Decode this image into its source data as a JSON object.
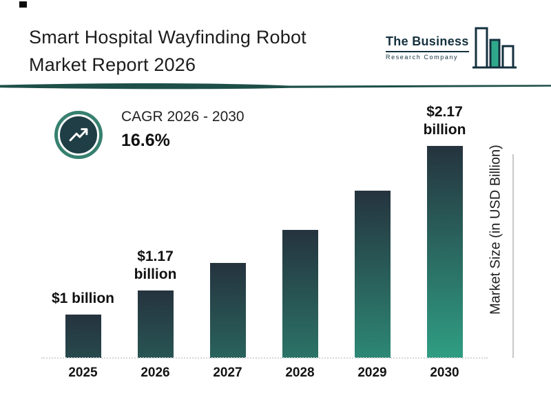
{
  "header": {
    "title_line1": "Smart Hospital Wayfinding Robot",
    "title_line2": "Market Report 2026",
    "logo": {
      "name": "The Business",
      "subtitle": "Research Company"
    }
  },
  "cagr": {
    "label": "CAGR 2026 - 2030",
    "value": "16.6%"
  },
  "chart_data": {
    "type": "bar",
    "title": "Smart Hospital Wayfinding Robot Market Report 2026",
    "categories": [
      "2025",
      "2026",
      "2027",
      "2028",
      "2029",
      "2030"
    ],
    "values": [
      1,
      1.17,
      1.36,
      1.59,
      1.86,
      2.17
    ],
    "bar_labels": [
      "$1 billion",
      "$1.17\nbillion",
      "",
      "",
      "",
      "$2.17\nbillion"
    ],
    "xlabel": "",
    "ylabel": "Market Size (in USD Billion)",
    "ylim": [
      0.7,
      2.3
    ],
    "grid": false,
    "legend": "none",
    "cagr_annotation": "CAGR 2026 - 2030: 16.6%"
  },
  "colors": {
    "bar_top": "#25333e",
    "bar_bottom": "#2f9b81",
    "divider": "#1d4f48",
    "badge_fill": "#1f3e46",
    "badge_ring": "#37806f",
    "logo_navy": "#14303e",
    "logo_green": "#2fa98c"
  }
}
